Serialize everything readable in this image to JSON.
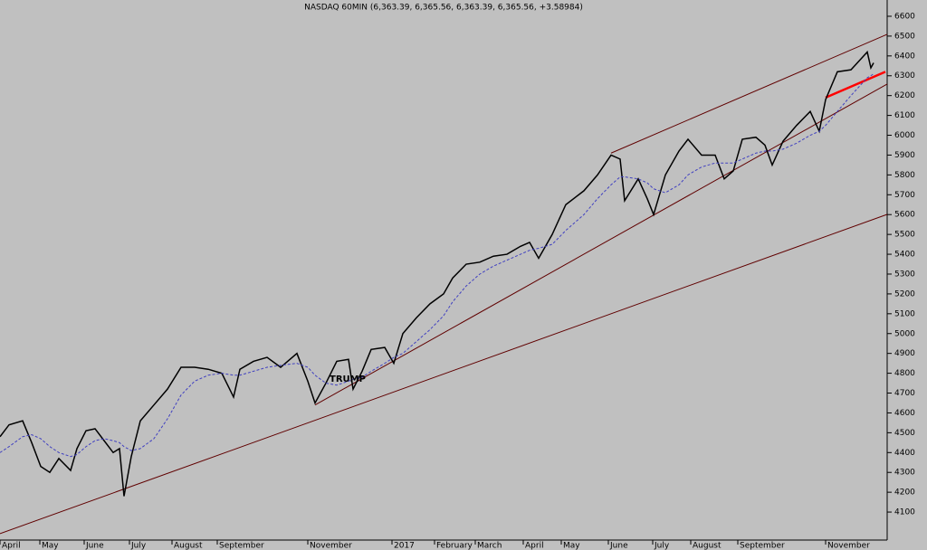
{
  "chart_data": {
    "type": "line",
    "title": "NASDAQ 60MIN (6,363.39, 6,365.56, 6,363.39, 6,365.56, +3.58984)",
    "annotation": "TRUMP",
    "x": [
      0,
      10,
      25,
      35,
      45,
      55,
      65,
      78,
      85,
      95,
      105,
      115,
      125,
      132,
      137,
      145,
      155,
      170,
      185,
      200,
      215,
      230,
      245,
      258,
      265,
      280,
      295,
      310,
      328,
      340,
      348,
      360,
      372,
      385,
      390,
      400,
      410,
      425,
      435,
      445,
      460,
      475,
      490,
      500,
      515,
      530,
      545,
      560,
      575,
      585,
      595,
      610,
      625,
      645,
      660,
      675,
      685,
      690,
      705,
      715,
      722,
      735,
      750,
      760,
      775,
      790,
      800,
      810,
      820,
      835,
      845,
      853,
      865,
      880,
      895,
      905,
      912,
      925,
      940,
      950,
      958,
      962,
      965
    ],
    "series": [
      {
        "color": "#000000",
        "values": [
          4480,
          4540,
          4560,
          4450,
          4330,
          4300,
          4370,
          4310,
          4420,
          4510,
          4520,
          4460,
          4400,
          4420,
          4180,
          4380,
          4560,
          4640,
          4720,
          4830,
          4830,
          4820,
          4800,
          4680,
          4820,
          4860,
          4880,
          4830,
          4900,
          4760,
          4650,
          4750,
          4860,
          4870,
          4720,
          4810,
          4920,
          4930,
          4850,
          5000,
          5080,
          5150,
          5200,
          5280,
          5350,
          5360,
          5390,
          5400,
          5440,
          5460,
          5380,
          5500,
          5650,
          5720,
          5800,
          5900,
          5880,
          5670,
          5780,
          5680,
          5600,
          5800,
          5920,
          5980,
          5900,
          5900,
          5780,
          5820,
          5980,
          5990,
          5950,
          5850,
          5970,
          6050,
          6120,
          6020,
          6180,
          6320,
          6330,
          6380,
          6420,
          6340,
          6365
        ]
      },
      {
        "color": "#4040c0",
        "values": [
          4400,
          4430,
          4480,
          4490,
          4470,
          4430,
          4400,
          4380,
          4390,
          4430,
          4460,
          4470,
          4460,
          4450,
          4430,
          4410,
          4420,
          4470,
          4570,
          4690,
          4760,
          4790,
          4800,
          4790,
          4790,
          4810,
          4830,
          4840,
          4850,
          4830,
          4790,
          4750,
          4740,
          4760,
          4770,
          4780,
          4810,
          4850,
          4880,
          4900,
          4960,
          5020,
          5090,
          5160,
          5240,
          5300,
          5340,
          5370,
          5400,
          5420,
          5430,
          5450,
          5520,
          5600,
          5680,
          5750,
          5790,
          5790,
          5780,
          5760,
          5730,
          5710,
          5750,
          5800,
          5840,
          5860,
          5860,
          5860,
          5880,
          5910,
          5920,
          5920,
          5930,
          5960,
          6000,
          6020,
          6050,
          6120,
          6200,
          6250,
          6290,
          6300,
          6310
        ]
      }
    ],
    "trendlines": [
      {
        "color": "#600000",
        "x": [
          0,
          980
        ],
        "y": [
          3991,
          5601
        ]
      },
      {
        "color": "#600000",
        "x": [
          348,
          980
        ],
        "y": [
          4640,
          6258
        ]
      },
      {
        "color": "#600000",
        "x": [
          675,
          980
        ],
        "y": [
          5910,
          6509
        ]
      },
      {
        "color": "#ff0000",
        "x": [
          912,
          978
        ],
        "y": [
          6190,
          6320
        ]
      }
    ],
    "xlim": [
      0,
      980
    ],
    "ylim": [
      3968,
      6682
    ],
    "yticks": [
      4100,
      4200,
      4300,
      4400,
      4500,
      4600,
      4700,
      4800,
      4900,
      5000,
      5100,
      5200,
      5300,
      5400,
      5500,
      5600,
      5700,
      5800,
      5900,
      6000,
      6100,
      6200,
      6300,
      6400,
      6500,
      6600
    ],
    "xticks": [
      {
        "value": 0,
        "label": "April"
      },
      {
        "value": 44,
        "label": "May"
      },
      {
        "value": 93,
        "label": "June"
      },
      {
        "value": 143,
        "label": "July"
      },
      {
        "value": 190,
        "label": "August"
      },
      {
        "value": 240,
        "label": "September"
      },
      {
        "value": 340,
        "label": "November"
      },
      {
        "value": 433,
        "label": "2017"
      },
      {
        "value": 480,
        "label": "February"
      },
      {
        "value": 525,
        "label": "March"
      },
      {
        "value": 578,
        "label": "April"
      },
      {
        "value": 620,
        "label": "May"
      },
      {
        "value": 672,
        "label": "June"
      },
      {
        "value": 721,
        "label": "July"
      },
      {
        "value": 763,
        "label": "August"
      },
      {
        "value": 815,
        "label": "September"
      },
      {
        "value": 912,
        "label": "November"
      }
    ]
  }
}
